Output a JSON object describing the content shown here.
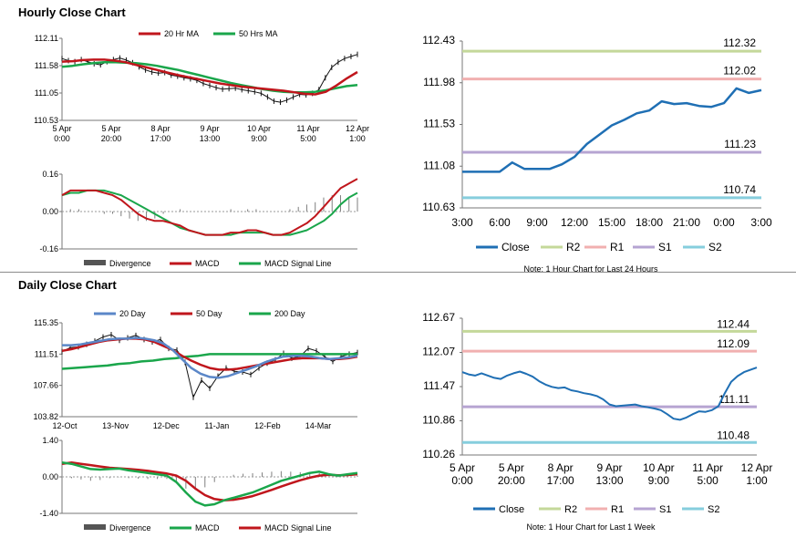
{
  "hourly": {
    "title": "Hourly Close Chart",
    "colors": {
      "ma20": "#c0161c",
      "ma50": "#1aa64b",
      "close": "#1f6fb4",
      "r2": "#c4d89a",
      "r1": "#f1b0b0",
      "s1": "#b6a4d2",
      "s2": "#86cedd",
      "div": "#7f7f7f"
    }
  },
  "daily": {
    "title": "Daily Close Chart"
  },
  "chart_data": [
    {
      "id": "hourly_price",
      "type": "line",
      "title": "Hourly Close Chart",
      "legend": [
        "20 Hr MA",
        "50 Hrs MA"
      ],
      "y_ticks": [
        "112.11",
        "111.58",
        "111.05",
        "110.53"
      ],
      "ylim": [
        110.53,
        112.11
      ],
      "x_ticks": [
        [
          "5 Apr",
          "0:00"
        ],
        [
          "5 Apr",
          "20:00"
        ],
        [
          "8 Apr",
          "17:00"
        ],
        [
          "9 Apr",
          "13:00"
        ],
        [
          "10 Apr",
          "9:00"
        ],
        [
          "11 Apr",
          "5:00"
        ],
        [
          "12 Apr",
          "1:00"
        ]
      ],
      "price": [
        111.72,
        111.68,
        111.66,
        111.7,
        111.66,
        111.62,
        111.6,
        111.66,
        111.7,
        111.73,
        111.69,
        111.64,
        111.56,
        111.5,
        111.46,
        111.44,
        111.45,
        111.4,
        111.38,
        111.35,
        111.33,
        111.3,
        111.24,
        111.2,
        111.16,
        111.13,
        111.14,
        111.15,
        111.12,
        111.1,
        111.08,
        111.05,
        110.98,
        110.9,
        110.88,
        110.92,
        110.98,
        111.03,
        111.02,
        111.05,
        111.12,
        111.35,
        111.55,
        111.65,
        111.72,
        111.76,
        111.8
      ],
      "ma20": [
        111.66,
        111.67,
        111.69,
        111.7,
        111.7,
        111.68,
        111.65,
        111.6,
        111.55,
        111.5,
        111.45,
        111.4,
        111.36,
        111.32,
        111.28,
        111.24,
        111.21,
        111.18,
        111.16,
        111.14,
        111.12,
        111.1,
        111.07,
        111.04,
        111.03,
        111.08,
        111.2,
        111.34,
        111.46
      ],
      "ma50": [
        111.56,
        111.58,
        111.61,
        111.63,
        111.65,
        111.65,
        111.64,
        111.63,
        111.61,
        111.58,
        111.54,
        111.5,
        111.45,
        111.4,
        111.35,
        111.3,
        111.25,
        111.21,
        111.17,
        111.13,
        111.1,
        111.08,
        111.07,
        111.07,
        111.08,
        111.11,
        111.15,
        111.19,
        111.21
      ]
    },
    {
      "id": "hourly_macd",
      "type": "line",
      "legend": [
        "Divergence",
        "MACD",
        "MACD Signal Line"
      ],
      "y_ticks": [
        "0.16",
        "0.00",
        "-0.16"
      ],
      "ylim": [
        -0.16,
        0.16
      ],
      "macd": [
        0.07,
        0.09,
        0.09,
        0.09,
        0.09,
        0.08,
        0.07,
        0.05,
        0.02,
        -0.01,
        -0.03,
        -0.04,
        -0.04,
        -0.05,
        -0.06,
        -0.08,
        -0.09,
        -0.1,
        -0.1,
        -0.1,
        -0.09,
        -0.09,
        -0.08,
        -0.08,
        -0.09,
        -0.1,
        -0.1,
        -0.09,
        -0.07,
        -0.05,
        -0.02,
        0.02,
        0.06,
        0.1,
        0.12,
        0.14
      ],
      "signal": [
        0.07,
        0.08,
        0.08,
        0.09,
        0.09,
        0.09,
        0.08,
        0.07,
        0.05,
        0.03,
        0.01,
        -0.01,
        -0.03,
        -0.05,
        -0.07,
        -0.08,
        -0.09,
        -0.1,
        -0.1,
        -0.1,
        -0.1,
        -0.09,
        -0.09,
        -0.09,
        -0.09,
        -0.1,
        -0.1,
        -0.1,
        -0.09,
        -0.08,
        -0.06,
        -0.04,
        -0.01,
        0.03,
        0.06,
        0.08
      ]
    },
    {
      "id": "hourly_24h",
      "type": "line",
      "note": "Note: 1 Hour Chart for Last 24 Hours",
      "y_ticks": [
        "112.43",
        "111.98",
        "111.53",
        "111.08",
        "110.63"
      ],
      "ylim": [
        110.63,
        112.43
      ],
      "x_ticks": [
        "3:00",
        "6:00",
        "9:00",
        "12:00",
        "15:00",
        "18:00",
        "21:00",
        "0:00",
        "3:00"
      ],
      "close": [
        111.02,
        111.02,
        111.02,
        111.02,
        111.12,
        111.05,
        111.05,
        111.05,
        111.1,
        111.18,
        111.32,
        111.42,
        111.52,
        111.58,
        111.65,
        111.68,
        111.78,
        111.75,
        111.76,
        111.73,
        111.72,
        111.76,
        111.92,
        111.87,
        111.9
      ],
      "levels": {
        "R2": 112.32,
        "R1": 112.02,
        "S1": 111.23,
        "S2": 110.74
      },
      "level_labels": {
        "R2": "112.32",
        "R1": "112.02",
        "S1": "111.23",
        "S2": "110.74"
      },
      "legend": [
        "Close",
        "R2",
        "R1",
        "S1",
        "S2"
      ]
    },
    {
      "id": "daily_price",
      "type": "line",
      "title": "Daily Close Chart",
      "legend": [
        "20 Day",
        "50 Day",
        "200 Day"
      ],
      "y_ticks": [
        "115.35",
        "111.51",
        "107.66",
        "103.82"
      ],
      "ylim": [
        103.82,
        115.35
      ],
      "x_ticks": [
        "12-Oct",
        "13-Nov",
        "12-Dec",
        "11-Jan",
        "12-Feb",
        "14-Mar"
      ],
      "price": [
        111.8,
        112.3,
        112.4,
        112.7,
        113.1,
        113.6,
        113.9,
        113.2,
        113.5,
        113.8,
        113.3,
        113.0,
        113.3,
        112.2,
        112.0,
        110.5,
        106.2,
        108.3,
        107.3,
        108.8,
        109.8,
        109.4,
        109.3,
        109.0,
        109.8,
        110.4,
        110.8,
        111.6,
        111.0,
        111.2,
        112.2,
        111.9,
        111.2,
        110.6,
        111.2,
        111.5,
        111.7
      ],
      "ma20": [
        112.6,
        112.6,
        112.7,
        112.9,
        113.1,
        113.3,
        113.4,
        113.4,
        113.5,
        113.4,
        113.2,
        112.8,
        112.0,
        110.9,
        109.8,
        109.1,
        108.7,
        108.6,
        108.8,
        109.2,
        109.6,
        110.0,
        110.5,
        110.9,
        111.2,
        111.3,
        111.3,
        111.2,
        111.0,
        110.9,
        111.0,
        111.1,
        111.3
      ],
      "ma50": [
        111.9,
        112.1,
        112.4,
        112.7,
        113.0,
        113.2,
        113.3,
        113.4,
        113.4,
        113.3,
        113.0,
        112.5,
        112.0,
        111.3,
        110.7,
        110.2,
        109.8,
        109.6,
        109.6,
        109.7,
        109.9,
        110.1,
        110.3,
        110.5,
        110.7,
        110.9,
        111.0,
        111.0,
        111.0,
        110.9,
        110.9,
        111.0,
        111.2
      ],
      "ma200": [
        109.7,
        109.8,
        109.9,
        110.0,
        110.1,
        110.3,
        110.4,
        110.6,
        110.7,
        110.9,
        111.0,
        111.2,
        111.3,
        111.5,
        111.5,
        111.5,
        111.5,
        111.5,
        111.5,
        111.5,
        111.5,
        111.5,
        111.5,
        111.5,
        111.5,
        111.5,
        111.5
      ]
    },
    {
      "id": "daily_macd",
      "type": "line",
      "legend": [
        "Divergence",
        "MACD",
        "MACD Signal Line"
      ],
      "y_ticks": [
        "1.40",
        "0.00",
        "-1.40"
      ],
      "ylim": [
        -1.4,
        1.4
      ],
      "macd": [
        0.55,
        0.5,
        0.4,
        0.3,
        0.28,
        0.3,
        0.32,
        0.25,
        0.2,
        0.15,
        0.1,
        0.05,
        -0.2,
        -0.6,
        -0.95,
        -1.1,
        -1.05,
        -0.9,
        -0.8,
        -0.7,
        -0.6,
        -0.45,
        -0.3,
        -0.15,
        -0.05,
        0.05,
        0.15,
        0.2,
        0.1,
        0.05,
        0.1,
        0.15
      ],
      "signal": [
        0.5,
        0.55,
        0.5,
        0.45,
        0.4,
        0.35,
        0.33,
        0.3,
        0.27,
        0.23,
        0.18,
        0.13,
        0.05,
        -0.15,
        -0.45,
        -0.7,
        -0.85,
        -0.9,
        -0.88,
        -0.82,
        -0.74,
        -0.62,
        -0.5,
        -0.37,
        -0.25,
        -0.13,
        -0.03,
        0.05,
        0.08,
        0.06,
        0.07,
        0.1
      ]
    },
    {
      "id": "daily_week",
      "type": "line",
      "note": "Note: 1 Hour Chart for Last 1 Week",
      "y_ticks": [
        "112.67",
        "112.07",
        "111.47",
        "110.86",
        "110.26"
      ],
      "ylim": [
        110.26,
        112.67
      ],
      "x_ticks": [
        [
          "5 Apr",
          "0:00"
        ],
        [
          "5 Apr",
          "20:00"
        ],
        [
          "8 Apr",
          "17:00"
        ],
        [
          "9 Apr",
          "13:00"
        ],
        [
          "10 Apr",
          "9:00"
        ],
        [
          "11 Apr",
          "5:00"
        ],
        [
          "12 Apr",
          "1:00"
        ]
      ],
      "close": [
        111.72,
        111.68,
        111.66,
        111.7,
        111.66,
        111.62,
        111.6,
        111.66,
        111.7,
        111.73,
        111.69,
        111.64,
        111.56,
        111.5,
        111.46,
        111.44,
        111.45,
        111.4,
        111.38,
        111.35,
        111.33,
        111.3,
        111.24,
        111.15,
        111.12,
        111.13,
        111.14,
        111.15,
        111.12,
        111.1,
        111.08,
        111.05,
        110.98,
        110.9,
        110.88,
        110.92,
        110.98,
        111.03,
        111.02,
        111.05,
        111.12,
        111.35,
        111.55,
        111.65,
        111.72,
        111.76,
        111.8
      ],
      "levels": {
        "R2": 112.44,
        "R1": 112.09,
        "S1": 111.11,
        "S2": 110.48
      },
      "level_labels": {
        "R2": "112.44",
        "R1": "112.09",
        "S1": "111.11",
        "S2": "110.48"
      },
      "legend": [
        "Close",
        "R2",
        "R1",
        "S1",
        "S2"
      ]
    }
  ]
}
